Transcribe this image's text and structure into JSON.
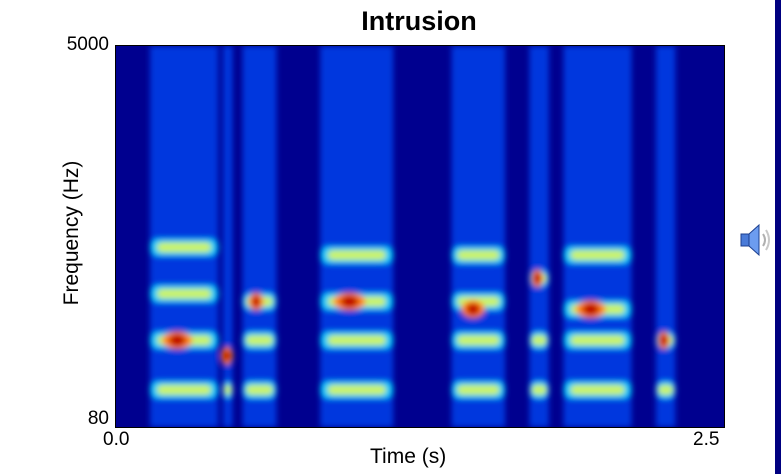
{
  "chart_data": {
    "type": "heatmap",
    "title": "Intrusion",
    "xlabel": "Time (s)",
    "ylabel": "Frequency (Hz)",
    "xlim": [
      0.0,
      2.5
    ],
    "ylim": [
      80,
      5000
    ],
    "x_tick_labels": [
      "0.0",
      "2.5"
    ],
    "y_tick_labels": [
      "5000",
      "80"
    ],
    "colormap": [
      "#00008f",
      "#0050ff",
      "#00e0ff",
      "#ffff40",
      "#ff8000",
      "#c00000"
    ],
    "segments": [
      {
        "t_start": 0.14,
        "t_end": 0.42,
        "formant_hz": [
          560,
          1200,
          1800,
          2400
        ],
        "peak_hz": 1200
      },
      {
        "t_start": 0.44,
        "t_end": 0.48,
        "formant_hz": [
          560,
          1000
        ],
        "peak_hz": 1000
      },
      {
        "t_start": 0.52,
        "t_end": 0.66,
        "formant_hz": [
          560,
          1200,
          1700
        ],
        "peak_hz": 1700
      },
      {
        "t_start": 0.84,
        "t_end": 1.14,
        "formant_hz": [
          560,
          1200,
          1700,
          2300
        ],
        "peak_hz": 1700
      },
      {
        "t_start": 1.38,
        "t_end": 1.6,
        "formant_hz": [
          560,
          1200,
          1700,
          2300
        ],
        "peak_hz": 1600
      },
      {
        "t_start": 1.7,
        "t_end": 1.78,
        "formant_hz": [
          560,
          1200,
          2000
        ],
        "peak_hz": 2000
      },
      {
        "t_start": 1.84,
        "t_end": 2.12,
        "formant_hz": [
          560,
          1200,
          1600,
          2300
        ],
        "peak_hz": 1600
      },
      {
        "t_start": 2.22,
        "t_end": 2.3,
        "formant_hz": [
          560,
          1200
        ],
        "peak_hz": 1200
      }
    ],
    "grid": false
  },
  "icons": {
    "speaker": "speaker-icon"
  }
}
